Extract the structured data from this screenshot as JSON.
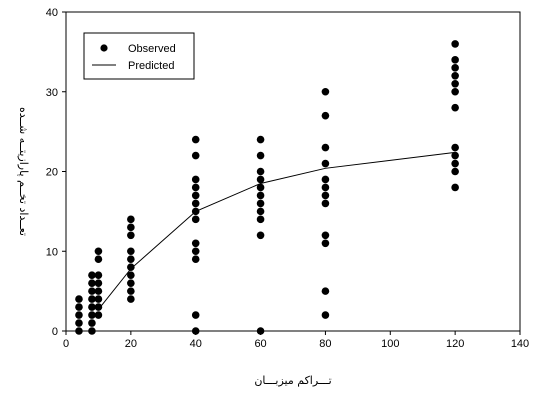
{
  "chart_data": {
    "type": "scatter",
    "xlabel": "تـــراکم میزبـــان",
    "ylabel": "تعــداد تخــم پارازیتــه شــده",
    "xlim": [
      0,
      140
    ],
    "ylim": [
      0,
      40
    ],
    "x_ticks": [
      "0",
      "20",
      "40",
      "60",
      "80",
      "100",
      "120",
      "140"
    ],
    "y_ticks": [
      "0",
      "10",
      "20",
      "30",
      "40"
    ],
    "grid": false,
    "legend_position": "top-left",
    "series": [
      {
        "name": "Observed",
        "kind": "points",
        "color": "#000000",
        "points": [
          [
            4,
            0
          ],
          [
            4,
            1
          ],
          [
            4,
            2
          ],
          [
            4,
            3
          ],
          [
            4,
            4
          ],
          [
            8,
            0
          ],
          [
            8,
            1
          ],
          [
            8,
            2
          ],
          [
            8,
            3
          ],
          [
            8,
            4
          ],
          [
            8,
            5
          ],
          [
            8,
            6
          ],
          [
            8,
            7
          ],
          [
            10,
            2
          ],
          [
            10,
            3
          ],
          [
            10,
            4
          ],
          [
            10,
            5
          ],
          [
            10,
            6
          ],
          [
            10,
            7
          ],
          [
            10,
            9
          ],
          [
            10,
            10
          ],
          [
            20,
            4
          ],
          [
            20,
            5
          ],
          [
            20,
            6
          ],
          [
            20,
            7
          ],
          [
            20,
            8
          ],
          [
            20,
            9
          ],
          [
            20,
            10
          ],
          [
            20,
            12
          ],
          [
            20,
            13
          ],
          [
            20,
            14
          ],
          [
            40,
            0
          ],
          [
            40,
            2
          ],
          [
            40,
            9
          ],
          [
            40,
            10
          ],
          [
            40,
            11
          ],
          [
            40,
            14
          ],
          [
            40,
            15
          ],
          [
            40,
            16
          ],
          [
            40,
            17
          ],
          [
            40,
            18
          ],
          [
            40,
            19
          ],
          [
            40,
            22
          ],
          [
            40,
            24
          ],
          [
            60,
            0
          ],
          [
            60,
            12
          ],
          [
            60,
            14
          ],
          [
            60,
            15
          ],
          [
            60,
            16
          ],
          [
            60,
            17
          ],
          [
            60,
            18
          ],
          [
            60,
            19
          ],
          [
            60,
            20
          ],
          [
            60,
            22
          ],
          [
            60,
            24
          ],
          [
            80,
            2
          ],
          [
            80,
            5
          ],
          [
            80,
            11
          ],
          [
            80,
            12
          ],
          [
            80,
            16
          ],
          [
            80,
            17
          ],
          [
            80,
            18
          ],
          [
            80,
            19
          ],
          [
            80,
            21
          ],
          [
            80,
            23
          ],
          [
            80,
            27
          ],
          [
            80,
            30
          ],
          [
            120,
            18
          ],
          [
            120,
            20
          ],
          [
            120,
            21
          ],
          [
            120,
            22
          ],
          [
            120,
            23
          ],
          [
            120,
            28
          ],
          [
            120,
            30
          ],
          [
            120,
            31
          ],
          [
            120,
            32
          ],
          [
            120,
            33
          ],
          [
            120,
            34
          ],
          [
            120,
            36
          ]
        ]
      },
      {
        "name": "Predicted",
        "kind": "line",
        "color": "#000000",
        "x": [
          10,
          20,
          40,
          60,
          80,
          120
        ],
        "y": [
          2.7,
          7.8,
          15,
          18.5,
          20.4,
          22.4
        ]
      }
    ]
  }
}
